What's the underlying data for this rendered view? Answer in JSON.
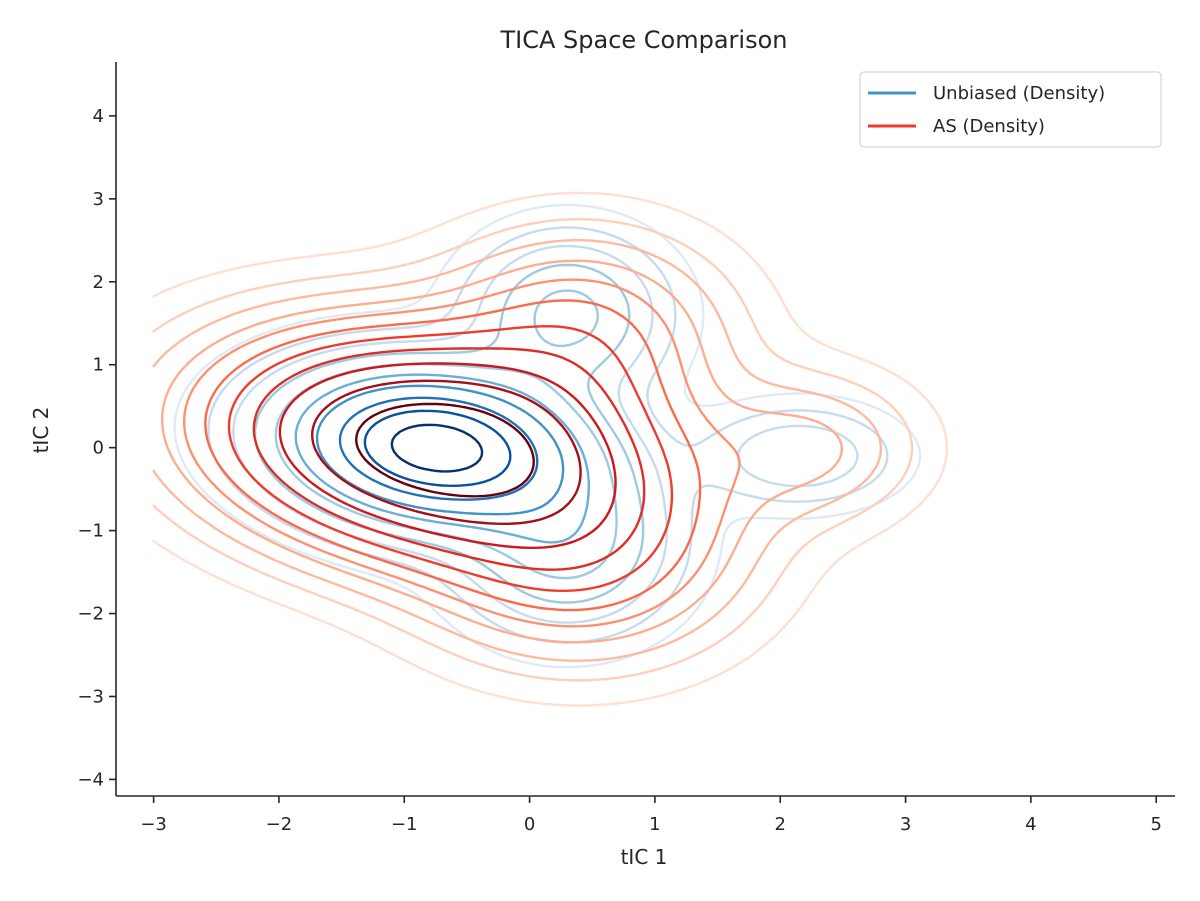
{
  "chart_data": {
    "type": "contour",
    "title": "TICA Space Comparison",
    "xlabel": "tIC 1",
    "ylabel": "tIC 2",
    "xlim": [
      -3.3,
      5.15
    ],
    "ylim": [
      -4.2,
      4.65
    ],
    "xticks": [
      -3,
      -2,
      -1,
      0,
      1,
      2,
      3,
      4,
      5
    ],
    "yticks": [
      -4,
      -3,
      -2,
      -1,
      0,
      1,
      2,
      3,
      4
    ],
    "xtick_labels": [
      "−3",
      "−2",
      "−1",
      "0",
      "1",
      "2",
      "3",
      "4",
      "5"
    ],
    "ytick_labels": [
      "−4",
      "−3",
      "−2",
      "−1",
      "0",
      "1",
      "2",
      "3",
      "4"
    ],
    "grid": false,
    "legend_position": "top-right",
    "series": [
      {
        "name": "Unbiased (Density)",
        "legend_color": "#4292c6",
        "level_colors": [
          "#deebf7",
          "#c6dbef",
          "#c6dbef",
          "#9ecae1",
          "#9ecae1",
          "#6baed6",
          "#4292c6",
          "#2171b5",
          "#08519c",
          "#08306b"
        ],
        "components": [
          {
            "cx": -0.75,
            "cy": 0.0,
            "w": 1.0,
            "sx": 0.7,
            "sy": 0.55,
            "rho": -0.15
          },
          {
            "cx": 0.3,
            "cy": 1.6,
            "w": 0.22,
            "sx": 0.45,
            "sy": 0.55,
            "rho": 0.0
          },
          {
            "cx": 0.3,
            "cy": -1.2,
            "w": 0.22,
            "sx": 0.5,
            "sy": 0.6,
            "rho": 0.0
          },
          {
            "cx": 2.15,
            "cy": -0.1,
            "w": 0.12,
            "sx": 0.45,
            "sy": 0.35,
            "rho": 0.0
          }
        ],
        "levels": [
          0.012,
          0.035,
          0.07,
          0.12,
          0.19,
          0.28,
          0.4,
          0.55,
          0.72,
          0.88
        ]
      },
      {
        "name": "AS (Density)",
        "legend_color": "#ef3b2c",
        "level_colors": [
          "#fee0d2",
          "#fdd0bc",
          "#fcbba1",
          "#fcae91",
          "#fc9272",
          "#fb6a4a",
          "#ef3b2c",
          "#de2d26",
          "#cb181d",
          "#a50f15",
          "#67000d"
        ],
        "components": [
          {
            "cx": -0.75,
            "cy": 0.0,
            "w": 1.0,
            "sx": 1.0,
            "sy": 0.78,
            "rho": -0.2
          },
          {
            "cx": 0.4,
            "cy": 1.3,
            "w": 0.2,
            "sx": 0.7,
            "sy": 0.75,
            "rho": 0.0
          },
          {
            "cx": 0.4,
            "cy": -1.3,
            "w": 0.22,
            "sx": 0.75,
            "sy": 0.75,
            "rho": 0.0
          },
          {
            "cx": 2.2,
            "cy": 0.0,
            "w": 0.1,
            "sx": 0.55,
            "sy": 0.55,
            "rho": 0.0
          }
        ],
        "levels": [
          0.012,
          0.03,
          0.055,
          0.09,
          0.13,
          0.18,
          0.25,
          0.34,
          0.45,
          0.6,
          0.8
        ]
      }
    ]
  }
}
